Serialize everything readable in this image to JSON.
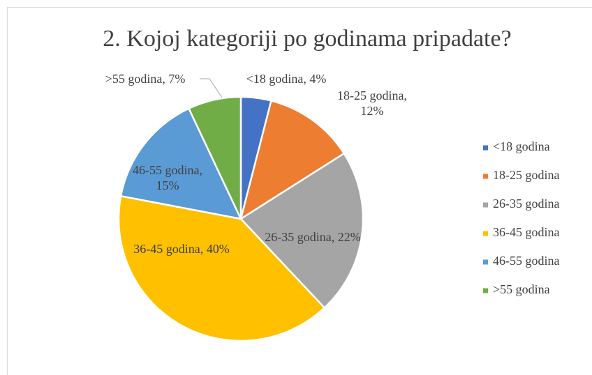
{
  "chart_data": {
    "type": "pie",
    "title": "2. Kojoj kategoriji po godinama pripadate?",
    "categories": [
      "<18 godina",
      "18-25 godina",
      "26-35 godina",
      "36-45 godina",
      "46-55 godina",
      ">55 godina"
    ],
    "values": [
      4,
      12,
      22,
      40,
      15,
      7
    ],
    "value_labels": [
      "<18 godina, 4%",
      "18-25 godina, 12%",
      "26-35 godina, 22%",
      "36-45 godina, 40%",
      "46-55 godina, 15%",
      ">55 godina, 7%"
    ],
    "colors": [
      "#4472c4",
      "#ed7d31",
      "#a5a5a5",
      "#ffc000",
      "#5b9bd5",
      "#70ad47"
    ],
    "legend": "right"
  }
}
